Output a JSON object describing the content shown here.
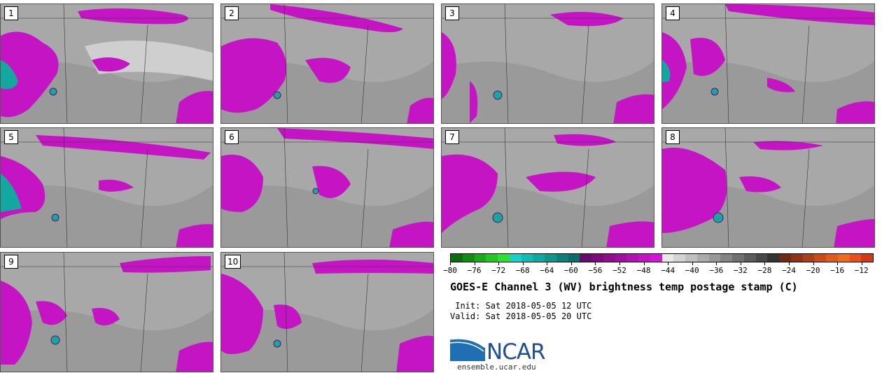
{
  "panels": [
    {
      "label": "1"
    },
    {
      "label": "2"
    },
    {
      "label": "3"
    },
    {
      "label": "4"
    },
    {
      "label": "5"
    },
    {
      "label": "6"
    },
    {
      "label": "7"
    },
    {
      "label": "8"
    },
    {
      "label": "9"
    },
    {
      "label": "10"
    }
  ],
  "colorbar": {
    "colors": [
      "#0a6e0a",
      "#128c12",
      "#1aab1a",
      "#22c722",
      "#2ee02e",
      "#14d2c8",
      "#12bcb4",
      "#10a8a0",
      "#0f948e",
      "#0d807c",
      "#0b6c68",
      "#6a0a6a",
      "#7c0c7c",
      "#8e0e8e",
      "#a010a0",
      "#b212b2",
      "#c414c4",
      "#d616d6",
      "#e8e8e8",
      "#d4d4d4",
      "#c0c0c0",
      "#acacac",
      "#989898",
      "#848484",
      "#707070",
      "#5c5c5c",
      "#484848",
      "#343434",
      "#6e2a12",
      "#8c3414",
      "#aa4016",
      "#c84c18",
      "#e05a1a",
      "#f06a1c",
      "#e8501a",
      "#d03a14"
    ],
    "tick_labels": [
      "−80",
      "−76",
      "−72",
      "−68",
      "−64",
      "−60",
      "−56",
      "−52",
      "−48",
      "−44",
      "−40",
      "−36",
      "−32",
      "−28",
      "−24",
      "−20",
      "−16",
      "−12"
    ],
    "min": -80,
    "max": -10
  },
  "title": "GOES-E Channel 3 (WV) brightness temp postage stamp (C)",
  "init": " Init: Sat 2018-05-05 12 UTC",
  "valid": "Valid: Sat 2018-05-05 20 UTC",
  "logo": {
    "text": "NCAR",
    "url": "ensemble.ucar.edu"
  }
}
